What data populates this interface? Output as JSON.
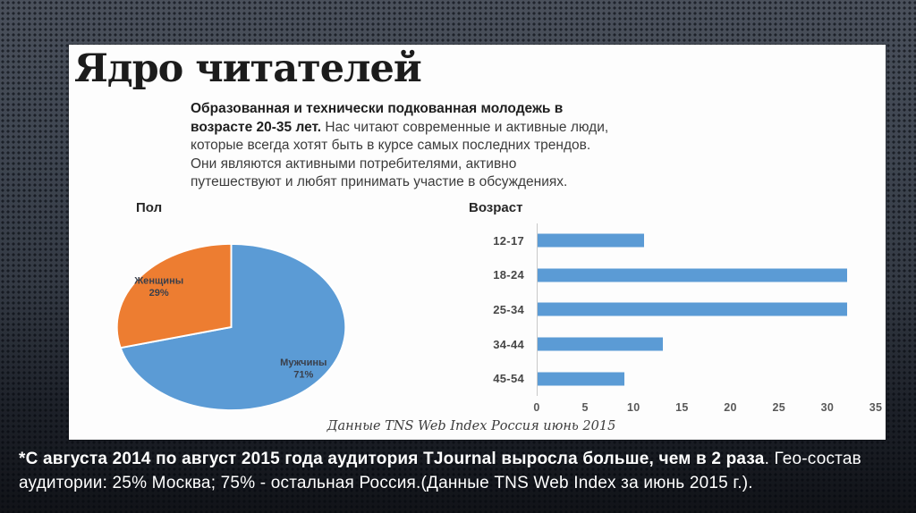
{
  "slide": {
    "title": "Ядро читателей",
    "intro_bold": "Образованная и технически подкованная молодежь в возрасте 20-35 лет.",
    "intro_rest": " Нас читают современные и активные люди, которые всегда хотят быть в курсе самых последних трендов. Они являются активными потребителями, активно путешествуют и любят принимать участие в обсуждениях.",
    "source": "Данные TNS Web Index Россия июнь 2015"
  },
  "footer": {
    "bold": "*С августа 2014 по август 2015 года аудитория TJournal выросла больше, чем в 2 раза",
    "rest": ". Гео-состав аудитории: 25% Москва; 75% - остальная Россия.(Данные TNS Web Index  за июнь 2015 г.)."
  },
  "chart_data": [
    {
      "type": "pie",
      "title": "Пол",
      "labels": [
        "Мужчины",
        "Женщины"
      ],
      "values": [
        71,
        29
      ],
      "value_suffix": "%",
      "colors": [
        "#5B9BD5",
        "#ED7D31"
      ],
      "start_angle": "top",
      "direction": "clockwise",
      "legend_position": "inside"
    },
    {
      "type": "bar",
      "title": "Возраст",
      "orientation": "horizontal",
      "categories": [
        "12-17",
        "18-24",
        "25-34",
        "34-44",
        "45-54"
      ],
      "values": [
        11,
        32,
        32,
        13,
        9
      ],
      "xlim": [
        0,
        35
      ],
      "xticks": [
        0,
        5,
        10,
        15,
        20,
        25,
        30,
        35
      ],
      "bar_color": "#5B9BD5",
      "grid": false
    }
  ]
}
